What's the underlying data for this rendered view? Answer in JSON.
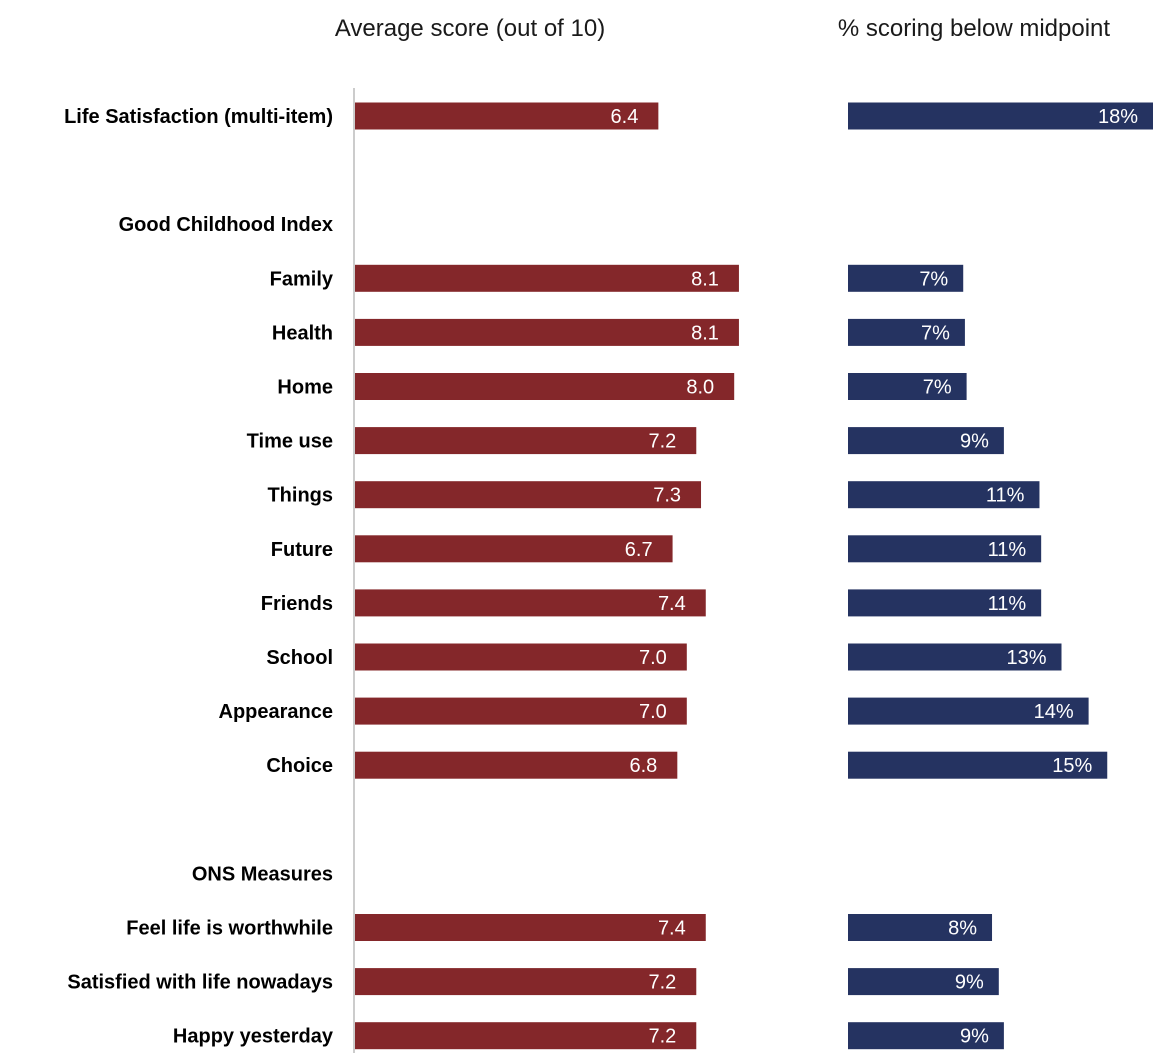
{
  "chart_data": {
    "type": "bar",
    "orientation": "horizontal",
    "panels": [
      {
        "title": "Average score (out of 10)",
        "color": "#84272a",
        "xlim": [
          0,
          10
        ],
        "value_format": "decimal"
      },
      {
        "title": "% scoring below midpoint",
        "color": "#253361",
        "xlim": [
          0,
          18
        ],
        "value_format": "percent"
      }
    ],
    "rows": [
      {
        "label": "Life Satisfaction (multi-item)",
        "kind": "item",
        "score": 6.4,
        "score_label": "6.4",
        "pct": 18,
        "pct_label": "18%"
      },
      {
        "label": "",
        "kind": "spacer"
      },
      {
        "label": "Good Childhood Index",
        "kind": "group"
      },
      {
        "label": "Family",
        "kind": "item",
        "score": 8.1,
        "score_label": "8.1",
        "pct": 6.8,
        "pct_label": "7%"
      },
      {
        "label": "Health",
        "kind": "item",
        "score": 8.1,
        "score_label": "8.1",
        "pct": 6.9,
        "pct_label": "7%"
      },
      {
        "label": "Home",
        "kind": "item",
        "score": 8.0,
        "score_label": "8.0",
        "pct": 7.0,
        "pct_label": "7%"
      },
      {
        "label": "Time use",
        "kind": "item",
        "score": 7.2,
        "score_label": "7.2",
        "pct": 9.2,
        "pct_label": "9%"
      },
      {
        "label": "Things",
        "kind": "item",
        "score": 7.3,
        "score_label": "7.3",
        "pct": 11.3,
        "pct_label": "11%"
      },
      {
        "label": "Future",
        "kind": "item",
        "score": 6.7,
        "score_label": "6.7",
        "pct": 11.4,
        "pct_label": "11%"
      },
      {
        "label": "Friends",
        "kind": "item",
        "score": 7.4,
        "score_label": "7.4",
        "pct": 11.4,
        "pct_label": "11%"
      },
      {
        "label": "School",
        "kind": "item",
        "score": 7.0,
        "score_label": "7.0",
        "pct": 12.6,
        "pct_label": "13%"
      },
      {
        "label": "Appearance",
        "kind": "item",
        "score": 7.0,
        "score_label": "7.0",
        "pct": 14.2,
        "pct_label": "14%"
      },
      {
        "label": "Choice",
        "kind": "item",
        "score": 6.8,
        "score_label": "6.8",
        "pct": 15.3,
        "pct_label": "15%"
      },
      {
        "label": "",
        "kind": "spacer"
      },
      {
        "label": "ONS Measures",
        "kind": "group"
      },
      {
        "label": "Feel life is worthwhile",
        "kind": "item",
        "score": 7.4,
        "score_label": "7.4",
        "pct": 8.5,
        "pct_label": "8%"
      },
      {
        "label": "Satisfied with life nowadays",
        "kind": "item",
        "score": 7.2,
        "score_label": "7.2",
        "pct": 8.9,
        "pct_label": "9%"
      },
      {
        "label": "Happy yesterday",
        "kind": "item",
        "score": 7.2,
        "score_label": "7.2",
        "pct": 9.2,
        "pct_label": "9%"
      }
    ],
    "grid": false,
    "legend": "none"
  }
}
